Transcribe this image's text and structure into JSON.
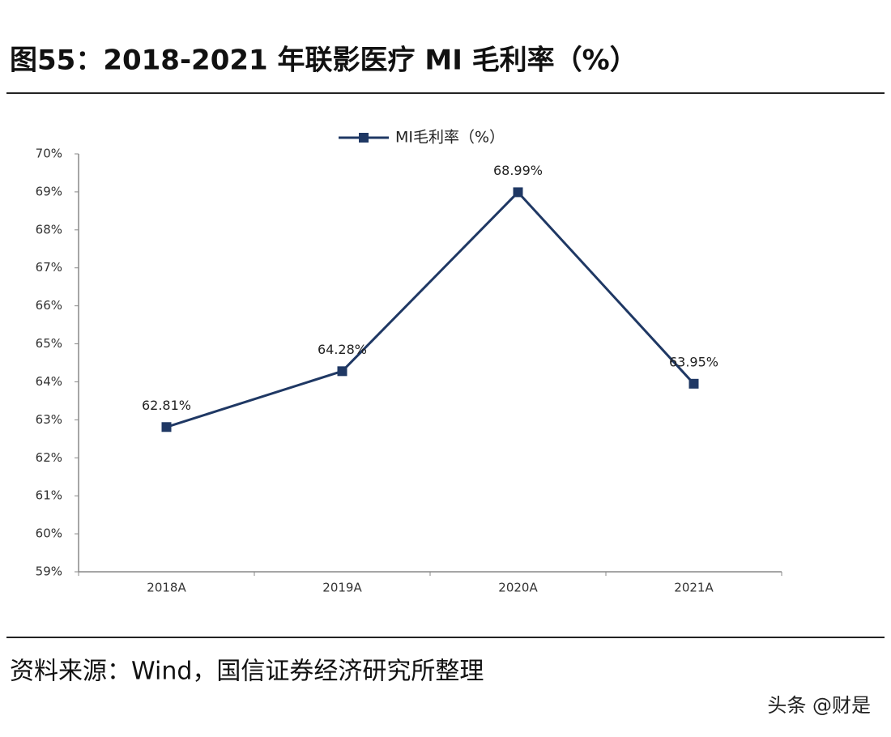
{
  "chart_data": {
    "type": "line",
    "title": "图55：2018-2021 年联影医疗 MI 毛利率（%）",
    "source": "资料来源：Wind，国信证券经济研究所整理",
    "categories": [
      "2018A",
      "2019A",
      "2020A",
      "2021A"
    ],
    "series": [
      {
        "name": "MI毛利率（%）",
        "color": "#1f3864",
        "values": [
          62.81,
          64.28,
          68.99,
          63.95
        ],
        "value_labels": [
          "62.81%",
          "64.28%",
          "68.99%",
          "63.95%"
        ]
      }
    ],
    "ylim": [
      59,
      70
    ],
    "yticks": [
      {
        "value": 59,
        "label": "59%"
      },
      {
        "value": 60,
        "label": "60%"
      },
      {
        "value": 61,
        "label": "61%"
      },
      {
        "value": 62,
        "label": "62%"
      },
      {
        "value": 63,
        "label": "63%"
      },
      {
        "value": 64,
        "label": "64%"
      },
      {
        "value": 65,
        "label": "65%"
      },
      {
        "value": 66,
        "label": "66%"
      },
      {
        "value": 67,
        "label": "67%"
      },
      {
        "value": 68,
        "label": "68%"
      },
      {
        "value": 69,
        "label": "69%"
      },
      {
        "value": 70,
        "label": "70%"
      }
    ],
    "grid": false,
    "legend": "top"
  },
  "watermark": "头条 @财是"
}
